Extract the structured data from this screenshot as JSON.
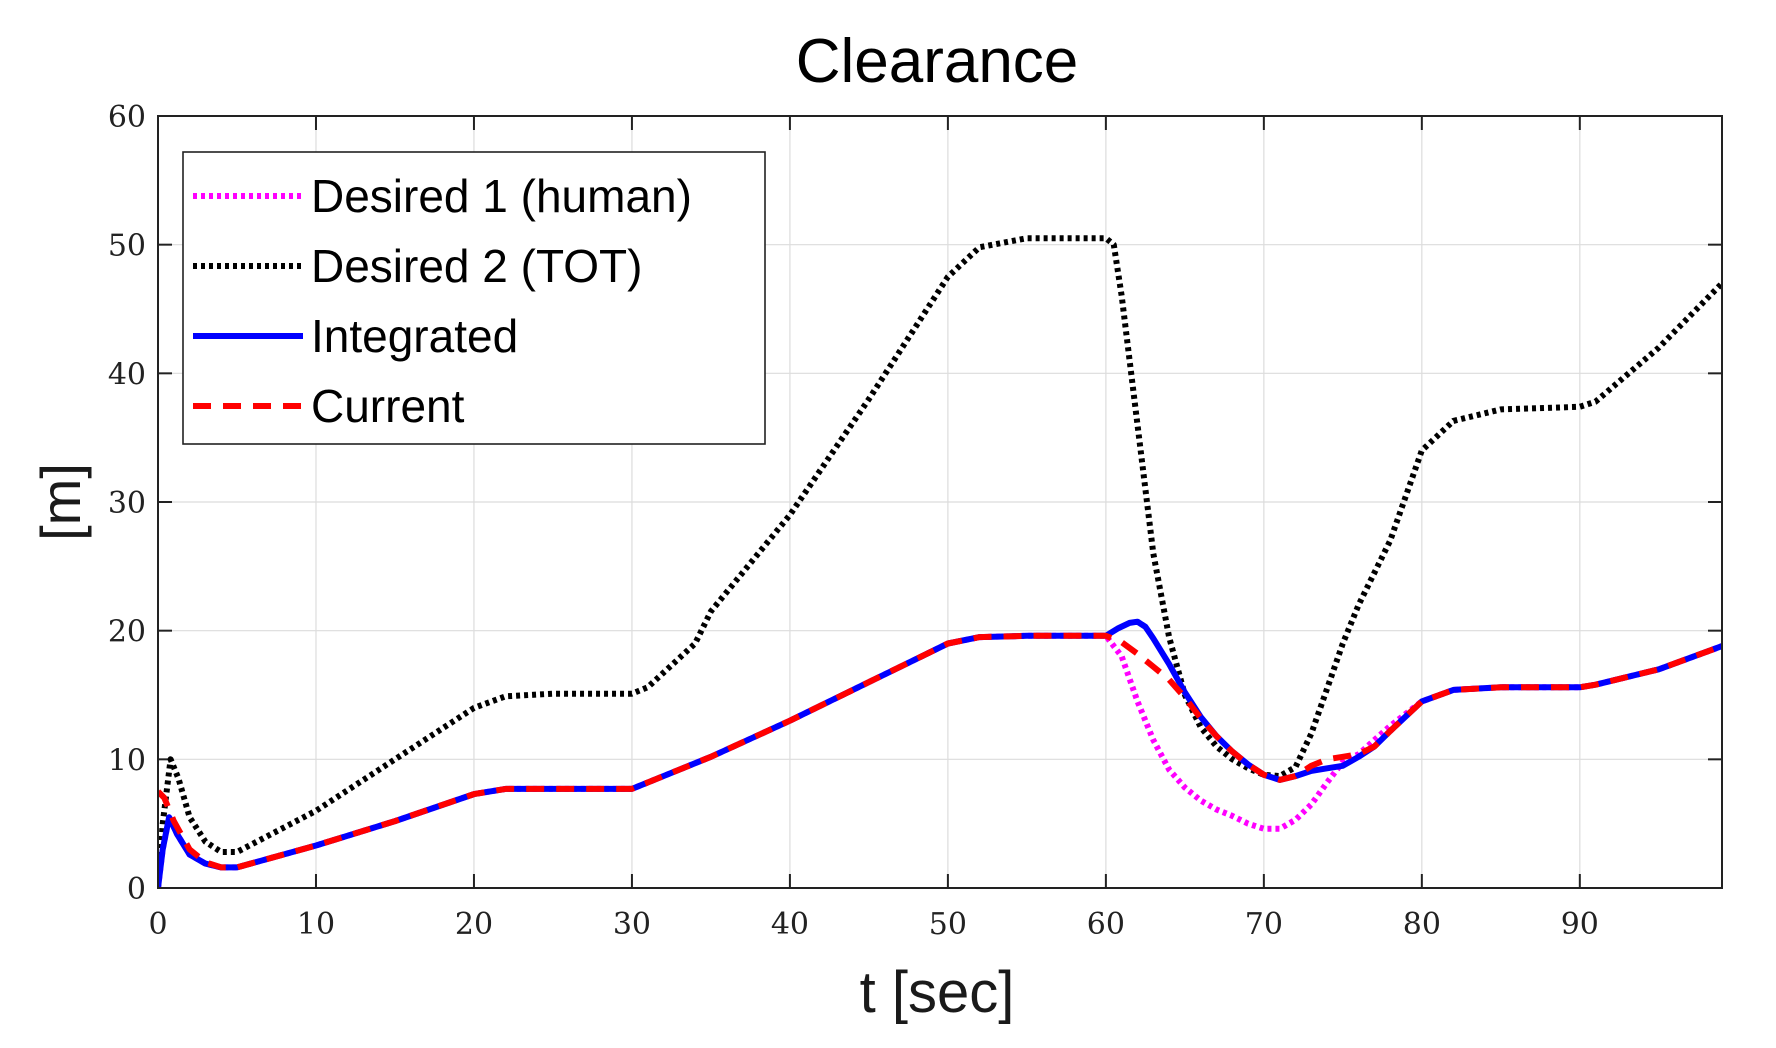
{
  "chart_data": {
    "type": "line",
    "title": "Clearance",
    "xlabel": "t [sec]",
    "ylabel": "[m]",
    "xlim": [
      0,
      99
    ],
    "ylim": [
      0,
      60
    ],
    "xticks": [
      0,
      10,
      20,
      30,
      40,
      50,
      60,
      70,
      80,
      90
    ],
    "yticks": [
      0,
      10,
      20,
      30,
      40,
      50,
      60
    ],
    "grid": true,
    "legend_position": "top-left",
    "series": [
      {
        "name": "Desired 1 (human)",
        "color": "#ff00ff",
        "style": "dotted",
        "x": [
          0,
          0.3,
          0.7,
          1.2,
          2,
          3,
          4,
          5,
          10,
          15,
          20,
          22,
          25,
          30,
          31,
          35,
          40,
          45,
          50,
          52,
          55,
          58,
          60,
          61,
          62,
          63,
          64,
          65,
          66,
          67,
          68,
          69,
          70,
          71,
          72,
          73,
          74,
          75,
          76,
          77,
          78,
          80,
          82,
          85,
          90,
          91,
          95,
          99
        ],
        "y": [
          0,
          3,
          5.5,
          4.2,
          2.6,
          1.9,
          1.6,
          1.6,
          3.3,
          5.2,
          7.3,
          7.7,
          7.7,
          7.7,
          8.2,
          10.2,
          13,
          16,
          19,
          19.5,
          19.6,
          19.6,
          19.6,
          18,
          14.5,
          11.5,
          9.2,
          7.8,
          6.8,
          6.1,
          5.6,
          5.0,
          4.6,
          4.6,
          5.3,
          6.5,
          8.2,
          9.8,
          10.4,
          11.5,
          12.6,
          14.5,
          15.4,
          15.6,
          15.6,
          15.8,
          17,
          18.8
        ]
      },
      {
        "name": "Desired 2 (TOT)",
        "color": "#000000",
        "style": "dotted",
        "x": [
          0,
          0.3,
          0.8,
          1.3,
          2,
          3,
          4,
          5,
          10,
          15,
          20,
          22,
          25,
          30,
          31,
          34,
          35,
          40,
          45,
          50,
          52,
          55,
          58,
          60,
          60.5,
          61,
          62,
          63,
          64,
          65,
          66,
          67,
          68,
          69,
          70,
          71,
          72,
          73,
          74,
          75,
          76,
          78,
          80,
          82,
          85,
          90,
          91,
          95,
          99
        ],
        "y": [
          0,
          5,
          10,
          8.5,
          5.5,
          3.6,
          2.8,
          2.8,
          6,
          10,
          14,
          14.9,
          15.1,
          15.1,
          15.6,
          19,
          21.5,
          29,
          38,
          47.5,
          49.8,
          50.5,
          50.5,
          50.5,
          50,
          46,
          36,
          26,
          19.5,
          15,
          12.5,
          11,
          10,
          9.3,
          8.8,
          8.7,
          9.4,
          12,
          15.5,
          19,
          22,
          27,
          34,
          36.3,
          37.2,
          37.4,
          37.8,
          42,
          47
        ]
      },
      {
        "name": "Integrated",
        "color": "#0000ff",
        "style": "solid",
        "x": [
          0,
          0.3,
          0.7,
          1.2,
          2,
          3,
          4,
          5,
          10,
          15,
          20,
          22,
          25,
          30,
          31,
          35,
          40,
          45,
          50,
          52,
          55,
          58,
          60,
          60.8,
          61.5,
          62,
          62.5,
          63,
          64,
          65,
          66,
          67,
          68,
          69,
          70,
          71,
          72,
          73,
          74,
          75,
          76,
          77,
          78,
          80,
          82,
          85,
          90,
          91,
          95,
          99
        ],
        "y": [
          0,
          3,
          5.5,
          4.2,
          2.6,
          1.9,
          1.6,
          1.6,
          3.3,
          5.2,
          7.3,
          7.7,
          7.7,
          7.7,
          8.2,
          10.2,
          13,
          16,
          19,
          19.5,
          19.6,
          19.6,
          19.6,
          20.2,
          20.6,
          20.7,
          20.3,
          19.4,
          17.4,
          15.2,
          13.3,
          11.8,
          10.6,
          9.6,
          8.8,
          8.4,
          8.7,
          9.1,
          9.3,
          9.5,
          10.2,
          11,
          12.2,
          14.5,
          15.4,
          15.6,
          15.6,
          15.8,
          17,
          18.8
        ]
      },
      {
        "name": "Current",
        "color": "#ff0000",
        "style": "dashed",
        "x": [
          0,
          0.4,
          1,
          2,
          3,
          4,
          5,
          10,
          15,
          20,
          22,
          25,
          30,
          31,
          35,
          40,
          45,
          50,
          52,
          55,
          58,
          60,
          61,
          62,
          63,
          64,
          65,
          66,
          67,
          68,
          69,
          70,
          71,
          72,
          73,
          74,
          75,
          76,
          77,
          78,
          80,
          82,
          85,
          90,
          91,
          95,
          99
        ],
        "y": [
          7.5,
          7.0,
          5.2,
          3.0,
          2.0,
          1.6,
          1.6,
          3.3,
          5.2,
          7.3,
          7.7,
          7.7,
          7.7,
          8.2,
          10.2,
          13,
          16,
          19,
          19.5,
          19.6,
          19.6,
          19.6,
          19.1,
          18.2,
          17.2,
          16.2,
          14.8,
          13.2,
          11.8,
          10.6,
          9.6,
          8.8,
          8.4,
          8.7,
          9.5,
          10.0,
          10.2,
          10.4,
          11,
          12.2,
          14.5,
          15.4,
          15.6,
          15.6,
          15.8,
          17,
          18.8
        ]
      }
    ]
  }
}
